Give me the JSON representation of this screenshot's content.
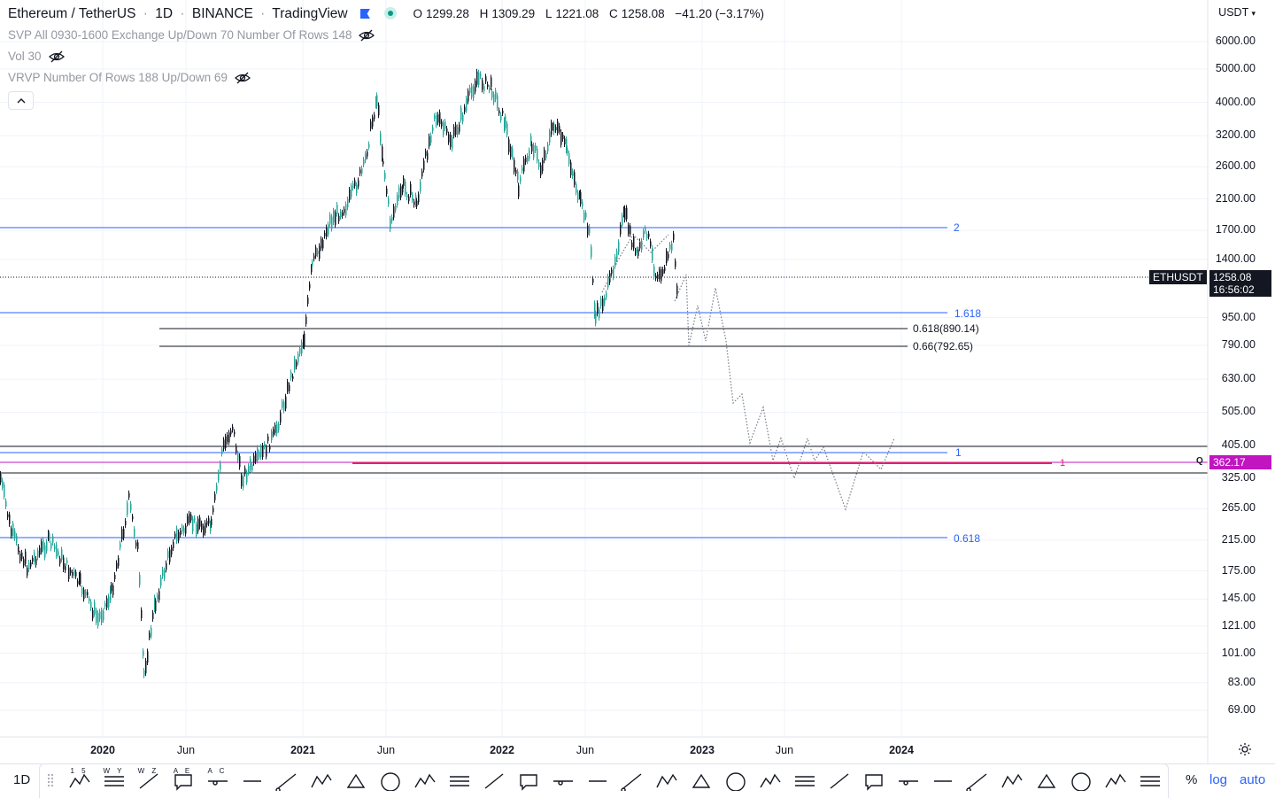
{
  "legend": {
    "symbol": "Ethereum / TetherUS",
    "interval": "1D",
    "exchange": "BINANCE",
    "source": "TradingView",
    "open_label": "O",
    "open": "1299.28",
    "high_label": "H",
    "high": "1309.29",
    "low_label": "L",
    "low": "1221.08",
    "close_label": "C",
    "close": "1258.08",
    "change": "−41.20 (−3.17%)",
    "indicators": [
      "SVP All 0930-1600 Exchange Up/Down 70 Number Of Rows 148",
      "Vol 30",
      "VRVP Number Of Rows 188 Up/Down 69"
    ]
  },
  "price_axis": {
    "currency": "USDT",
    "labels": [
      "6000.00",
      "5000.00",
      "4000.00",
      "3200.00",
      "2600.00",
      "2100.00",
      "1700.00",
      "1400.00",
      "950.00",
      "790.00",
      "630.00",
      "505.00",
      "405.00",
      "325.00",
      "265.00",
      "215.00",
      "175.00",
      "145.00",
      "121.00",
      "101.00",
      "83.00",
      "69.00"
    ],
    "last_symbol": "ETHUSDT",
    "last_price": "1258.08",
    "countdown": "16:56:02",
    "alert_price": "362.17",
    "alert_marker": "Q"
  },
  "time_axis": {
    "labels": [
      "2020",
      "Jun",
      "2021",
      "Jun",
      "2022",
      "Jun",
      "2023",
      "Jun",
      "2024"
    ]
  },
  "drawings": {
    "fib_ext_2": "2",
    "fib_ext_1618": "1.618",
    "fib_ret_618": "0.618(890.14)",
    "fib_ret_66": "0.66(792.65)",
    "fib_ext_1": "1",
    "fib_ext_0618": "0.618",
    "alert_level": "1"
  },
  "colors": {
    "up": "#26a69a",
    "down": "#131722",
    "fib_blue": "#2962ff",
    "alert": "#e91e63",
    "alert_tag": "#c015c0"
  },
  "toolbar": {
    "interval": "1D",
    "percent": "%",
    "log": "log",
    "auto": "auto",
    "tools": [
      {
        "icon": "elliott-impulse-icon",
        "caption": "1 5"
      },
      {
        "icon": "elliott-triple-icon",
        "caption": "W Y"
      },
      {
        "icon": "elliott-double-icon",
        "caption": "W Z"
      },
      {
        "icon": "elliott-correction-icon",
        "caption": "A E"
      },
      {
        "icon": "elliott-abc-icon",
        "caption": "A C"
      },
      {
        "icon": "fib-channel-icon",
        "caption": ""
      },
      {
        "icon": "fib-retracement-icon",
        "caption": ""
      },
      {
        "icon": "trend-line-icon",
        "caption": ""
      },
      {
        "icon": "callout-icon",
        "caption": ""
      },
      {
        "icon": "horizontal-ray-icon",
        "caption": ""
      },
      {
        "icon": "horizontal-line-icon",
        "caption": ""
      },
      {
        "icon": "ray-icon",
        "caption": ""
      },
      {
        "icon": "pattern-icon",
        "caption": ""
      },
      {
        "icon": "triangle-pattern-icon",
        "caption": ""
      },
      {
        "icon": "pitchfork-icon",
        "caption": ""
      },
      {
        "icon": "schiff-pitchfork-icon",
        "caption": ""
      },
      {
        "icon": "parallel-channel-icon",
        "caption": ""
      },
      {
        "icon": "fib-circles-icon",
        "caption": ""
      },
      {
        "icon": "rectangle-icon",
        "caption": ""
      },
      {
        "icon": "fib-timezone-icon",
        "caption": ""
      },
      {
        "icon": "fan-icon",
        "caption": ""
      },
      {
        "icon": "brush-icon",
        "caption": ""
      },
      {
        "icon": "path-icon",
        "caption": ""
      },
      {
        "icon": "angle-icon",
        "caption": ""
      },
      {
        "icon": "eraser-icon",
        "caption": ""
      },
      {
        "icon": "measure-icon",
        "caption": ""
      },
      {
        "icon": "long-position-icon",
        "caption": ""
      },
      {
        "icon": "candles-icon",
        "caption": ""
      },
      {
        "icon": "gann-box-icon",
        "caption": ""
      },
      {
        "icon": "curve-icon",
        "caption": ""
      },
      {
        "icon": "ellipse-icon",
        "caption": ""
      },
      {
        "icon": "xabcd-icon",
        "caption": ""
      }
    ]
  }
}
